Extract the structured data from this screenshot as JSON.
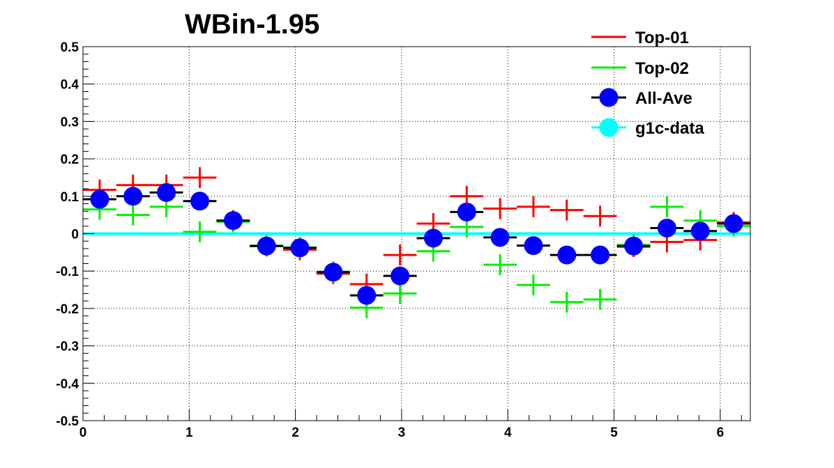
{
  "chart_data": {
    "type": "scatter",
    "title": "WBin-1.95",
    "xlabel": "",
    "ylabel": "",
    "xlim": [
      0,
      6.2832
    ],
    "ylim": [
      -0.5,
      0.5
    ],
    "grid": true,
    "legend_position": "top-right",
    "x_ticks": [
      "0",
      "1",
      "2",
      "3",
      "4",
      "5",
      "6"
    ],
    "y_ticks": [
      "0.5",
      "0.4",
      "0.3",
      "0.2",
      "0.1",
      "0",
      "-0.1",
      "-0.2",
      "-0.3",
      "-0.4",
      "-0.5"
    ],
    "x": [
      0.157,
      0.471,
      0.785,
      1.1,
      1.414,
      1.728,
      2.042,
      2.356,
      2.67,
      2.985,
      3.299,
      3.613,
      3.927,
      4.241,
      4.555,
      4.869,
      5.184,
      5.498,
      5.812,
      6.126
    ],
    "bin_half_width": 0.157,
    "series": [
      {
        "name": "Top-01",
        "color": "#ff0000",
        "marker": "cross",
        "values": [
          0.117,
          0.13,
          0.13,
          0.15,
          0.035,
          -0.033,
          -0.043,
          -0.107,
          -0.135,
          -0.057,
          0.027,
          0.1,
          0.067,
          0.072,
          0.063,
          0.047,
          -0.035,
          -0.022,
          -0.017,
          0.03
        ]
      },
      {
        "name": "Top-02",
        "color": "#00ee00",
        "marker": "cross",
        "values": [
          0.065,
          0.05,
          0.072,
          0.005,
          0.032,
          -0.032,
          -0.037,
          -0.102,
          -0.198,
          -0.16,
          -0.047,
          0.018,
          -0.083,
          -0.137,
          -0.183,
          -0.176,
          -0.03,
          0.072,
          0.035,
          0.02
        ]
      },
      {
        "name": "All-Ave",
        "color": "#0000ff",
        "marker": "circle",
        "values": [
          0.092,
          0.1,
          0.11,
          0.087,
          0.035,
          -0.033,
          -0.038,
          -0.103,
          -0.165,
          -0.113,
          -0.012,
          0.058,
          -0.01,
          -0.032,
          -0.057,
          -0.057,
          -0.033,
          0.015,
          0.007,
          0.027
        ]
      },
      {
        "name": "g1c-data",
        "color": "#00ffff",
        "marker": "circle",
        "values": [
          0,
          0,
          0,
          0,
          0,
          0,
          0,
          0,
          0,
          0,
          0,
          0,
          0,
          0,
          0,
          0,
          0,
          0,
          0,
          0
        ]
      }
    ]
  }
}
